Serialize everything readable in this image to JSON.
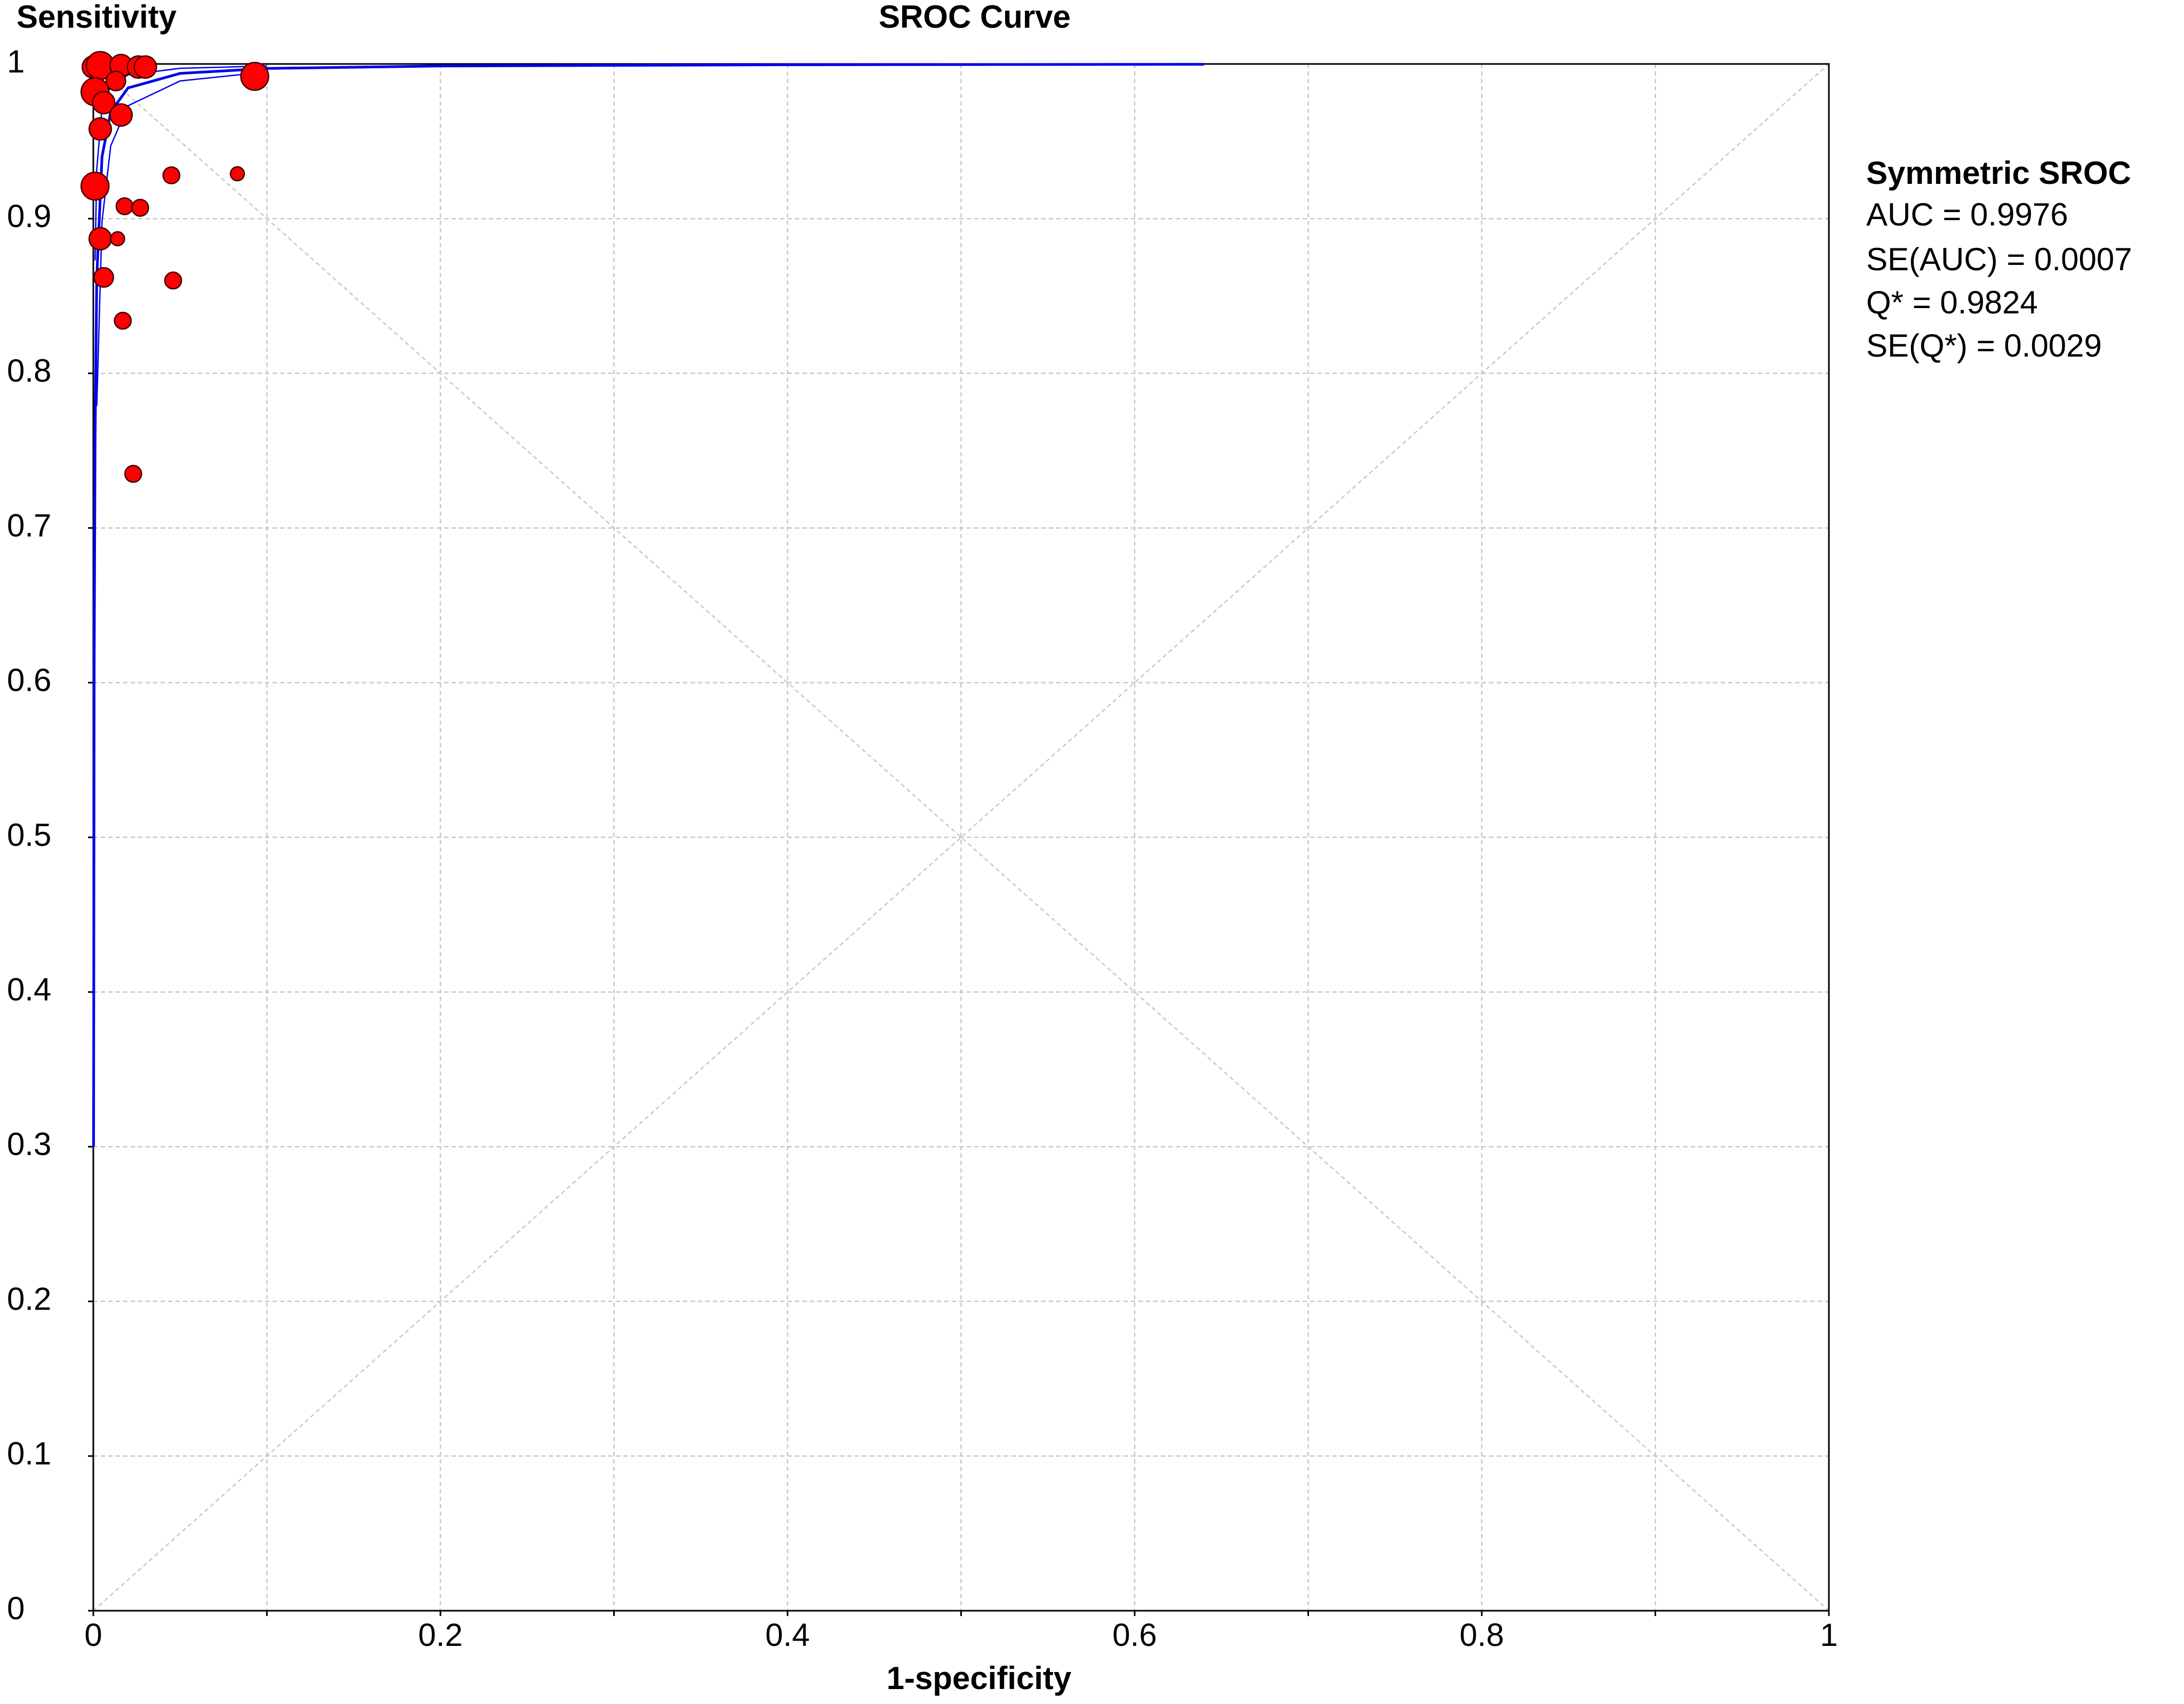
{
  "chart_data": {
    "type": "scatter",
    "title": "SROC Curve",
    "ylabel": "Sensitivity",
    "xlabel": "1-specificity",
    "xlim": [
      0,
      1
    ],
    "ylim": [
      0,
      1
    ],
    "xticks": [
      0,
      0.2,
      0.4,
      0.6,
      0.8,
      1
    ],
    "xminor": [
      0.1,
      0.3,
      0.5,
      0.7,
      0.9
    ],
    "yticks": [
      0,
      0.1,
      0.2,
      0.3,
      0.4,
      0.5,
      0.6,
      0.7,
      0.8,
      0.9,
      1
    ],
    "grid": true,
    "point_color": "#ff0000",
    "x": [
      0,
      0.004,
      0.016,
      0.026,
      0.03,
      0.013,
      0.001,
      0.006,
      0.016,
      0.004,
      0.093,
      0.045,
      0.083,
      0.001,
      0.018,
      0.027,
      0.004,
      0.014,
      0.006,
      0.046,
      0.017,
      0.023
    ],
    "values": [
      0.998,
      0.999,
      0.999,
      0.998,
      0.998,
      0.989,
      0.982,
      0.975,
      0.967,
      0.958,
      0.992,
      0.928,
      0.929,
      0.921,
      0.908,
      0.907,
      0.887,
      0.887,
      0.862,
      0.86,
      0.834,
      0.735
    ],
    "sizes": [
      8,
      10,
      8,
      8,
      8,
      7,
      10,
      8,
      8,
      8,
      10,
      6,
      5,
      10,
      6,
      6,
      8,
      5,
      7,
      6,
      6,
      6
    ],
    "lines": [
      {
        "color": "#0000ee",
        "width": 2,
        "x": [
          0.00014,
          0.0005,
          0.001,
          0.002,
          0.005,
          0.01,
          0.02,
          0.05,
          0.1,
          0.2,
          0.4,
          0.64
        ],
        "y": [
          0.3,
          0.609,
          0.757,
          0.862,
          0.94,
          0.969,
          0.9845,
          0.9939,
          0.9971,
          0.9987,
          0.9995,
          0.9998
        ]
      },
      {
        "color": "#0000ee",
        "width": 1,
        "x": [
          0.0015,
          0.002,
          0.005,
          0.01,
          0.02,
          0.05,
          0.1
        ],
        "y": [
          0.79,
          0.779,
          0.898,
          0.947,
          0.973,
          0.989,
          0.9949
        ]
      },
      {
        "color": "#0000ee",
        "width": 1,
        "x": [
          0.001,
          0.002,
          0.005,
          0.01,
          0.02,
          0.05,
          0.1
        ],
        "y": [
          0.873,
          0.932,
          0.972,
          0.986,
          0.9929,
          0.9972,
          0.9987
        ]
      }
    ],
    "annotations": [
      "Symmetric SROC",
      "AUC = 0.9976",
      "SE(AUC) = 0.0007",
      "Q* = 0.9824",
      "SE(Q*) = 0.0029"
    ]
  }
}
